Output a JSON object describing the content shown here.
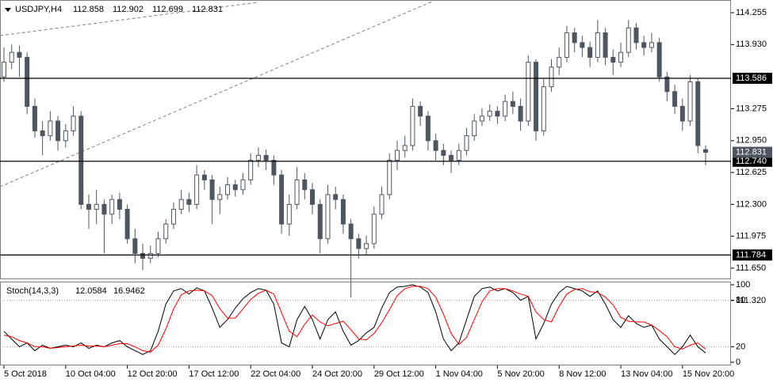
{
  "chart_data": [
    {
      "type": "candlestick",
      "title": "USDJPY,H4",
      "quote": [
        112.858,
        112.902,
        112.699,
        112.831
      ],
      "categories": [
        "5 Oct 2018",
        null,
        null,
        null,
        null,
        null,
        null,
        null,
        "10 Oct 04:00",
        null,
        null,
        null,
        null,
        null,
        null,
        null,
        "12 Oct 20:00",
        null,
        null,
        null,
        null,
        null,
        null,
        null,
        "17 Oct 12:00",
        null,
        null,
        null,
        null,
        null,
        null,
        null,
        "22 Oct 04:00",
        null,
        null,
        null,
        null,
        null,
        null,
        null,
        "24 Oct 20:00",
        null,
        null,
        null,
        null,
        null,
        null,
        null,
        "29 Oct 12:00",
        null,
        null,
        null,
        null,
        null,
        null,
        null,
        "1 Nov 04:00",
        null,
        null,
        null,
        null,
        null,
        null,
        null,
        "5 Nov 20:00",
        null,
        null,
        null,
        null,
        null,
        null,
        null,
        "8 Nov 12:00",
        null,
        null,
        null,
        null,
        null,
        null,
        null,
        "13 Nov 04:00",
        null,
        null,
        null,
        null,
        null,
        null,
        null,
        "15 Nov 20:00",
        null,
        null,
        null
      ],
      "open": [
        113.6,
        113.75,
        113.85,
        113.8,
        113.3,
        113.05,
        113.0,
        113.15,
        112.95,
        113.05,
        113.2,
        112.3,
        112.25,
        112.3,
        112.2,
        112.35,
        112.25,
        111.95,
        111.8,
        111.75,
        111.8,
        111.95,
        112.1,
        112.25,
        112.35,
        112.3,
        112.6,
        112.55,
        112.35,
        112.4,
        112.5,
        112.45,
        112.55,
        112.75,
        112.8,
        112.75,
        112.6,
        112.1,
        112.3,
        112.55,
        112.45,
        112.3,
        111.95,
        112.4,
        112.35,
        112.1,
        111.95,
        111.85,
        111.9,
        112.2,
        112.4,
        112.75,
        112.85,
        112.9,
        113.3,
        113.2,
        112.95,
        112.85,
        112.8,
        112.75,
        112.85,
        113.0,
        113.15,
        113.2,
        113.25,
        113.2,
        113.35,
        113.3,
        113.15,
        113.75,
        113.05,
        113.5,
        113.7,
        113.8,
        114.05,
        113.95,
        113.9,
        113.8,
        114.05,
        113.8,
        113.75,
        113.85,
        114.1,
        113.95,
        113.9,
        113.95,
        113.6,
        113.45,
        113.3,
        113.15,
        113.55,
        112.858
      ],
      "high": [
        113.9,
        113.93,
        113.92,
        113.85,
        113.38,
        113.15,
        113.25,
        113.2,
        113.12,
        113.3,
        113.25,
        112.4,
        112.45,
        112.35,
        112.4,
        112.42,
        112.3,
        112.05,
        111.9,
        111.88,
        112.02,
        112.15,
        112.32,
        112.45,
        112.42,
        112.7,
        112.65,
        112.6,
        112.48,
        112.58,
        112.55,
        112.62,
        112.82,
        112.88,
        112.86,
        112.8,
        112.65,
        112.4,
        112.68,
        112.62,
        112.52,
        112.35,
        112.5,
        112.48,
        112.4,
        112.15,
        112.0,
        111.98,
        112.28,
        112.48,
        112.82,
        112.95,
        113.0,
        113.38,
        113.35,
        113.25,
        113.02,
        112.92,
        112.85,
        112.92,
        113.08,
        113.22,
        113.28,
        113.32,
        113.3,
        113.42,
        113.45,
        113.38,
        113.82,
        113.78,
        113.58,
        113.78,
        113.9,
        114.12,
        114.1,
        114.02,
        113.96,
        114.18,
        114.1,
        113.88,
        113.95,
        114.18,
        114.15,
        114.02,
        114.05,
        114.0,
        113.65,
        113.52,
        113.38,
        113.62,
        113.58,
        112.902
      ],
      "low": [
        113.55,
        113.68,
        113.6,
        113.22,
        112.98,
        112.8,
        112.95,
        112.85,
        112.88,
        113.0,
        112.25,
        112.05,
        112.1,
        111.8,
        112.1,
        112.15,
        111.9,
        111.7,
        111.63,
        111.7,
        111.76,
        111.9,
        112.05,
        112.2,
        112.22,
        112.25,
        112.45,
        112.1,
        112.2,
        112.35,
        112.38,
        112.4,
        112.5,
        112.68,
        112.65,
        112.5,
        112.0,
        111.98,
        112.25,
        112.35,
        112.2,
        111.8,
        111.9,
        112.25,
        112.0,
        111.35,
        111.75,
        111.78,
        111.85,
        112.15,
        112.35,
        112.65,
        112.78,
        112.85,
        113.1,
        112.85,
        112.75,
        112.7,
        112.62,
        112.7,
        112.8,
        112.95,
        113.1,
        113.15,
        113.12,
        113.15,
        113.22,
        113.05,
        113.1,
        112.95,
        113.0,
        113.45,
        113.62,
        113.75,
        113.85,
        113.8,
        113.7,
        113.75,
        113.72,
        113.62,
        113.7,
        113.8,
        113.88,
        113.82,
        113.85,
        113.55,
        113.35,
        113.22,
        113.05,
        113.1,
        112.82,
        112.699
      ],
      "close": [
        113.75,
        113.85,
        113.8,
        113.3,
        113.05,
        113.0,
        113.15,
        112.95,
        113.05,
        113.2,
        112.3,
        112.25,
        112.3,
        112.2,
        112.35,
        112.25,
        111.95,
        111.8,
        111.75,
        111.8,
        111.95,
        112.1,
        112.25,
        112.35,
        112.3,
        112.6,
        112.55,
        112.35,
        112.4,
        112.5,
        112.45,
        112.55,
        112.75,
        112.8,
        112.75,
        112.6,
        112.1,
        112.3,
        112.55,
        112.45,
        112.3,
        111.95,
        112.4,
        112.35,
        112.1,
        111.95,
        111.85,
        111.9,
        112.2,
        112.4,
        112.75,
        112.85,
        112.9,
        113.3,
        113.2,
        112.95,
        112.85,
        112.8,
        112.75,
        112.85,
        113.0,
        113.15,
        113.2,
        113.25,
        113.2,
        113.35,
        113.3,
        113.15,
        113.75,
        113.05,
        113.5,
        113.7,
        113.8,
        114.05,
        113.95,
        113.9,
        113.8,
        114.05,
        113.8,
        113.75,
        113.85,
        114.1,
        113.95,
        113.9,
        113.95,
        113.6,
        113.45,
        113.3,
        113.15,
        113.55,
        112.9,
        112.831
      ],
      "ylim": [
        111.545,
        114.352
      ],
      "yticks": [
        114.255,
        {
          "value": 113.93,
          "label": "113.930"
        },
        113.275,
        {
          "value": 112.95,
          "label": "112.950"
        },
        112.625,
        {
          "value": 112.3,
          "label": "112.300"
        },
        111.975,
        {
          "value": 111.65,
          "label": "111.650"
        },
        {
          "value": 111.32,
          "label": "111.320"
        }
      ],
      "levels": [
        113.586,
        {
          "value": 112.74,
          "label": "112.740"
        },
        111.784
      ],
      "last_price": 112.831,
      "bull_color": "#ffffff",
      "bear_color": "#4d5660"
    },
    {
      "type": "line",
      "title": "Stoch(14,3,3)",
      "readout": [
        12.0584,
        16.9462
      ],
      "ylim": [
        0,
        100
      ],
      "yticks": [
        100,
        80,
        20,
        0
      ],
      "levels": [
        80,
        20
      ],
      "series": [
        {
          "color": "#000000",
          "values": [
            40,
            30,
            20,
            25,
            15,
            22,
            18,
            20,
            22,
            20,
            25,
            18,
            22,
            20,
            25,
            28,
            20,
            15,
            10,
            15,
            40,
            75,
            92,
            95,
            88,
            96,
            92,
            70,
            45,
            55,
            70,
            82,
            90,
            95,
            93,
            75,
            25,
            20,
            55,
            72,
            55,
            30,
            55,
            65,
            40,
            22,
            28,
            38,
            45,
            70,
            90,
            97,
            98,
            100,
            97,
            90,
            65,
            30,
            15,
            25,
            55,
            85,
            95,
            97,
            92,
            95,
            90,
            80,
            85,
            30,
            50,
            75,
            90,
            98,
            95,
            92,
            85,
            92,
            75,
            55,
            45,
            60,
            50,
            45,
            48,
            30,
            20,
            10,
            20,
            35,
            20,
            12.0584
          ]
        },
        {
          "color": "#ff0000",
          "values": [
            35,
            33,
            28,
            25,
            20,
            20,
            18,
            19,
            20,
            21,
            22,
            21,
            21,
            20,
            22,
            24,
            24,
            20,
            15,
            13,
            22,
            43,
            69,
            87,
            92,
            93,
            92,
            86,
            69,
            57,
            57,
            69,
            81,
            89,
            93,
            88,
            64,
            40,
            33,
            49,
            61,
            52,
            47,
            50,
            53,
            42,
            30,
            29,
            37,
            51,
            68,
            86,
            95,
            98,
            98,
            95,
            84,
            62,
            37,
            23,
            32,
            55,
            78,
            92,
            95,
            95,
            92,
            88,
            85,
            65,
            55,
            52,
            72,
            88,
            94,
            95,
            91,
            90,
            84,
            74,
            58,
            53,
            52,
            52,
            48,
            41,
            33,
            20,
            17,
            22,
            25,
            16.9462
          ]
        }
      ]
    }
  ]
}
